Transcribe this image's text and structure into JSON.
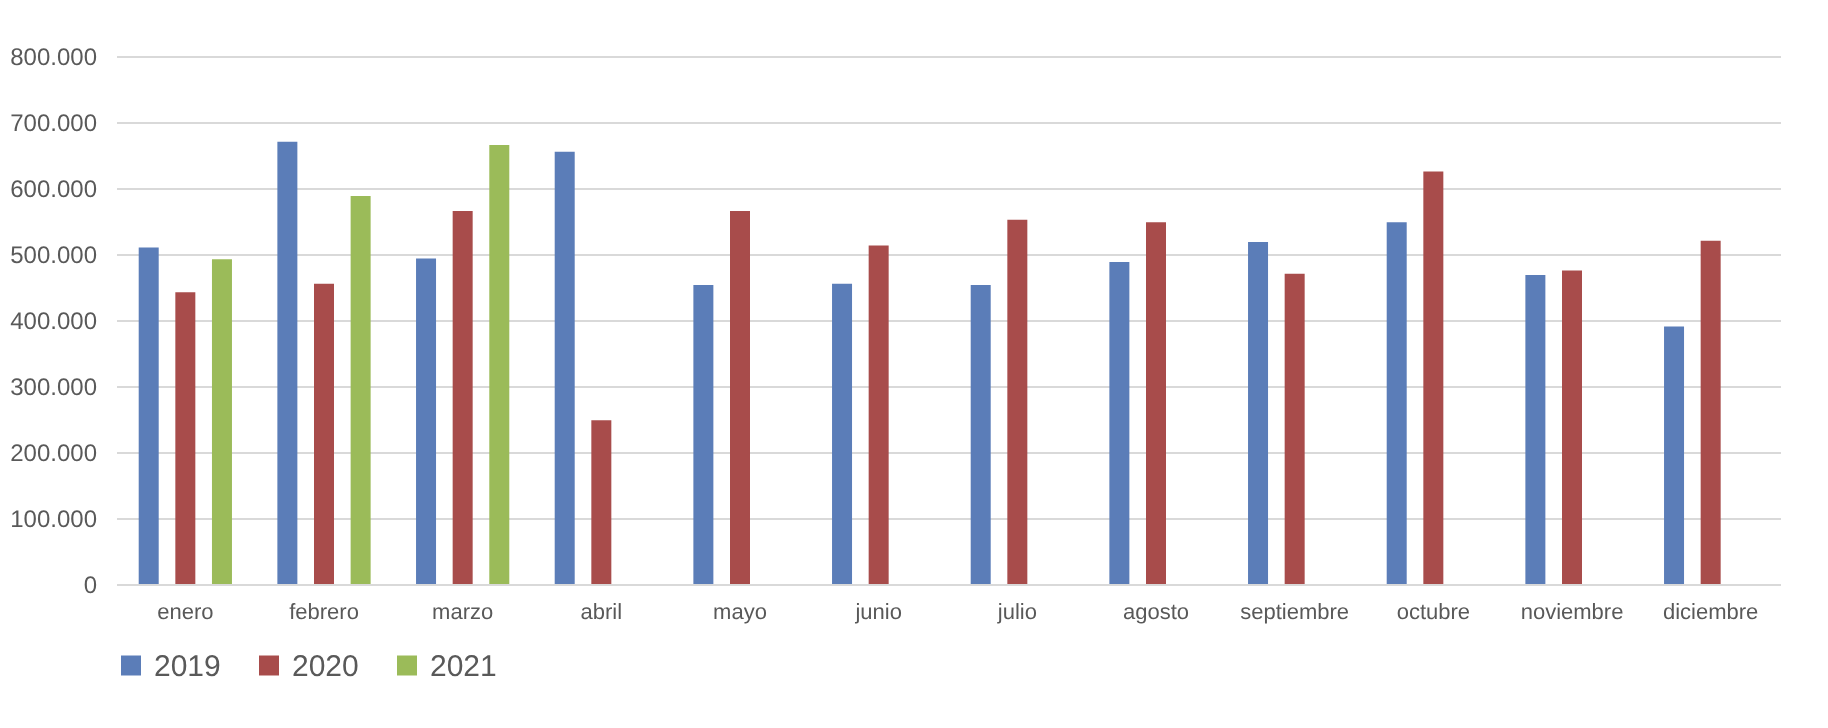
{
  "chart_data": {
    "type": "bar",
    "categories": [
      "enero",
      "febrero",
      "marzo",
      "abril",
      "mayo",
      "junio",
      "julio",
      "agosto",
      "septiembre",
      "octubre",
      "noviembre",
      "diciembre"
    ],
    "series": [
      {
        "name": "2019",
        "color": "#5b7db8",
        "values": [
          510000,
          670000,
          493000,
          655000,
          453000,
          455000,
          453000,
          488000,
          518000,
          548000,
          468000,
          390000
        ]
      },
      {
        "name": "2020",
        "color": "#a84c4b",
        "values": [
          442000,
          455000,
          565000,
          248000,
          565000,
          513000,
          552000,
          548000,
          470000,
          625000,
          475000,
          520000
        ]
      },
      {
        "name": "2021",
        "color": "#9bbb59",
        "values": [
          492000,
          588000,
          665000,
          null,
          null,
          null,
          null,
          null,
          null,
          null,
          null,
          null
        ]
      }
    ],
    "ylim": [
      0,
      800000
    ],
    "yticks": [
      {
        "value": 0,
        "label": "0"
      },
      {
        "value": 100000,
        "label": "100.000"
      },
      {
        "value": 200000,
        "label": "200.000"
      },
      {
        "value": 300000,
        "label": "300.000"
      },
      {
        "value": 400000,
        "label": "400.000"
      },
      {
        "value": 500000,
        "label": "500.000"
      },
      {
        "value": 600000,
        "label": "600.000"
      },
      {
        "value": 700000,
        "label": "700.000"
      },
      {
        "value": 800000,
        "label": "800.000"
      }
    ],
    "grid": "y",
    "legend": "bottom"
  }
}
